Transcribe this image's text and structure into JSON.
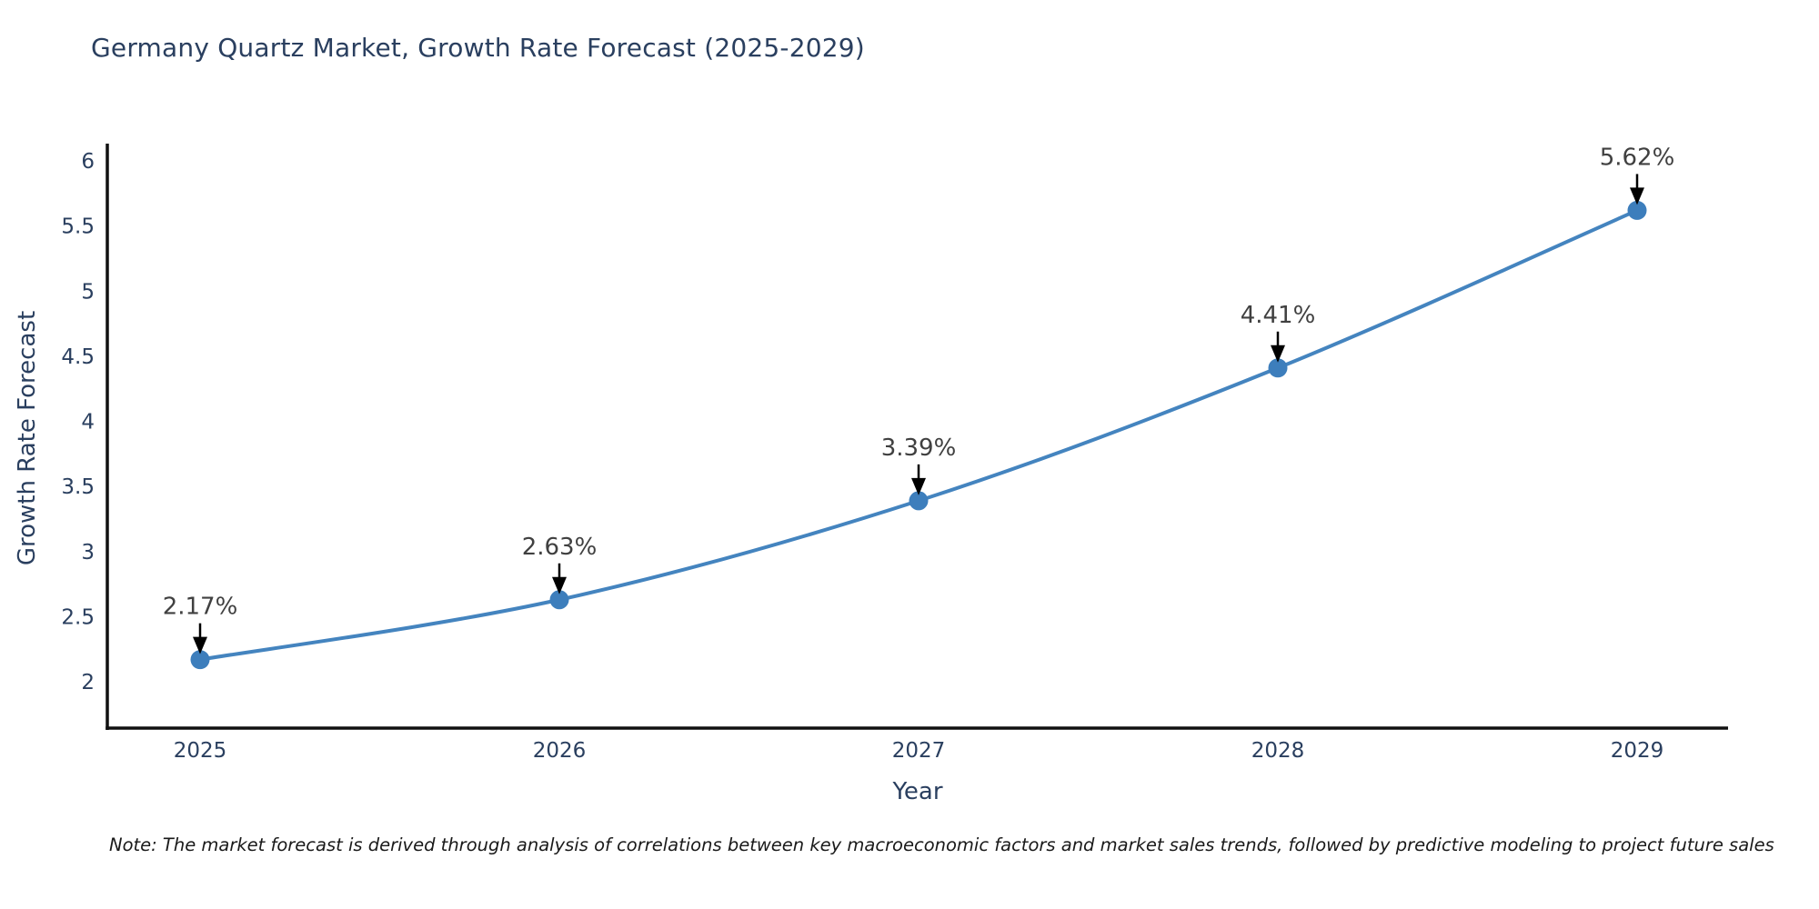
{
  "page": {
    "note": "Note: The market forecast is derived through analysis of correlations between key macroeconomic factors and market sales trends, followed by predictive modeling to project future sales"
  },
  "chart_data": {
    "type": "line",
    "title": "Germany Quartz Market, Growth Rate Forecast (2025-2029)",
    "xlabel": "Year",
    "ylabel": "Growth Rate Forecast",
    "categories": [
      "2025",
      "2026",
      "2027",
      "2028",
      "2029"
    ],
    "values": [
      2.17,
      2.63,
      3.39,
      4.41,
      5.62
    ],
    "point_labels": [
      "2.17%",
      "2.63%",
      "3.39%",
      "4.41%",
      "5.62%"
    ],
    "ylim": [
      2,
      6
    ],
    "yticks": [
      {
        "value": 6,
        "label": "6"
      },
      {
        "value": 5.5,
        "label": "5.5"
      },
      {
        "value": 5,
        "label": "5"
      },
      {
        "value": 4.5,
        "label": "4.5"
      },
      {
        "value": 4,
        "label": "4"
      },
      {
        "value": 3.5,
        "label": "3.5"
      },
      {
        "value": 3,
        "label": "3"
      },
      {
        "value": 2.5,
        "label": "2.5"
      },
      {
        "value": 2,
        "label": "2"
      }
    ],
    "line_shape": "spline",
    "marker": "circle",
    "grid": false,
    "legend_position": "none",
    "colors": {
      "line": "#4484bf",
      "marker": "#3d7ebc",
      "axis_line": "#111111",
      "title_text": "#2a3f5f",
      "tick_text": "#2a3f5f",
      "annotation_text": "#404040",
      "annotation_arrow": "#000000",
      "background": "#ffffff"
    }
  }
}
